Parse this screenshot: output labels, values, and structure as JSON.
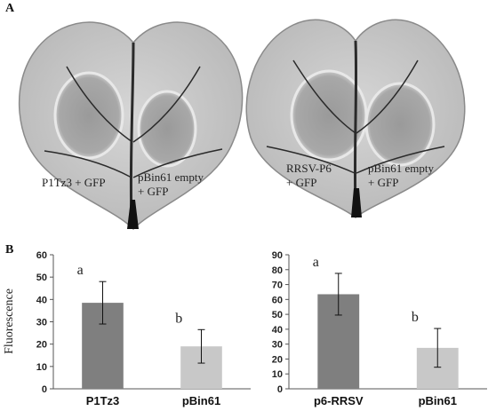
{
  "panel_a": {
    "label": "A",
    "leaf_left": {
      "label_left": [
        "P1Tz3 + GFP"
      ],
      "label_right": [
        "pBin61 empty",
        "+ GFP"
      ]
    },
    "leaf_right": {
      "label_left": [
        "RRSV-P6",
        "+ GFP"
      ],
      "label_right": [
        "pBin61 empty",
        "+ GFP"
      ]
    }
  },
  "panel_b": {
    "label": "B"
  },
  "colors": {
    "bar_dark": "#7f7f7f",
    "bar_light": "#c8c8c8",
    "leaf_fill": "#c9c9c9",
    "vein": "#2a2a2a"
  },
  "chart_data": [
    {
      "type": "bar",
      "categories": [
        "P1Tz3",
        "pBin61"
      ],
      "values": [
        38.5,
        19
      ],
      "error": [
        9.5,
        7.5
      ],
      "significance": [
        "a",
        "b"
      ],
      "ylabel": "Fluorescence",
      "ylim": [
        0,
        60
      ],
      "yticks": [
        0,
        10,
        20,
        30,
        40,
        50,
        60
      ],
      "colors": [
        "#7f7f7f",
        "#c8c8c8"
      ]
    },
    {
      "type": "bar",
      "categories": [
        "p6-RRSV",
        "pBin61"
      ],
      "values": [
        63.5,
        27.5
      ],
      "error": [
        14,
        13
      ],
      "significance": [
        "a",
        "b"
      ],
      "ylabel": "",
      "ylim": [
        0,
        90
      ],
      "yticks": [
        0,
        10,
        20,
        30,
        40,
        50,
        60,
        70,
        80,
        90
      ],
      "colors": [
        "#7f7f7f",
        "#c8c8c8"
      ]
    }
  ]
}
